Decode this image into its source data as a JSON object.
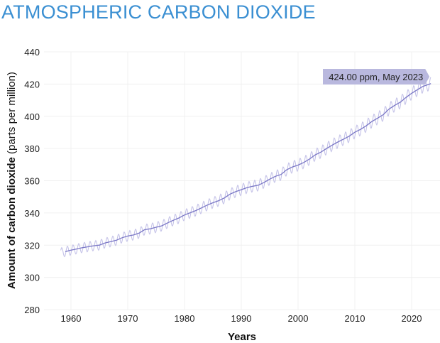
{
  "chart_data": {
    "type": "line",
    "title": "ATMOSPHERIC CARBON DIOXIDE",
    "xlabel": "Years",
    "ylabel_bold": "Amount of carbon dioxide",
    "ylabel_unit": "(parts per million)",
    "xlim": [
      1955,
      2025
    ],
    "ylim": [
      280,
      440
    ],
    "xticks": [
      1960,
      1970,
      1980,
      1990,
      2000,
      2010,
      2020
    ],
    "yticks": [
      280,
      300,
      320,
      340,
      360,
      380,
      400,
      420,
      440
    ],
    "grid": true,
    "annotation": {
      "text": "424.00 ppm, May 2023",
      "x": 2023.4,
      "y": 424.0
    },
    "seasonal_amplitude_ppm": 3.0,
    "series": [
      {
        "kind": "trend",
        "color": "#7a77c6",
        "x": [
          1959,
          1960,
          1961,
          1962,
          1963,
          1964,
          1965,
          1966,
          1967,
          1968,
          1969,
          1970,
          1971,
          1972,
          1973,
          1974,
          1975,
          1976,
          1977,
          1978,
          1979,
          1980,
          1981,
          1982,
          1983,
          1984,
          1985,
          1986,
          1987,
          1988,
          1989,
          1990,
          1991,
          1992,
          1993,
          1994,
          1995,
          1996,
          1997,
          1998,
          1999,
          2000,
          2001,
          2002,
          2003,
          2004,
          2005,
          2006,
          2007,
          2008,
          2009,
          2010,
          2011,
          2012,
          2013,
          2014,
          2015,
          2016,
          2017,
          2018,
          2019,
          2020,
          2021,
          2022,
          2023.4
        ],
        "y": [
          315.98,
          316.91,
          317.64,
          318.45,
          318.99,
          319.62,
          320.04,
          321.37,
          322.18,
          323.05,
          324.62,
          325.68,
          326.32,
          327.46,
          329.68,
          330.19,
          331.13,
          332.03,
          333.84,
          335.41,
          336.84,
          338.76,
          340.12,
          341.48,
          343.15,
          344.87,
          346.35,
          347.61,
          349.31,
          351.69,
          353.2,
          354.45,
          355.7,
          356.54,
          357.21,
          358.96,
          360.97,
          362.74,
          363.88,
          366.84,
          368.54,
          369.71,
          371.32,
          373.45,
          375.98,
          377.7,
          379.98,
          382.09,
          384.02,
          385.83,
          387.64,
          390.1,
          391.85,
          394.06,
          396.74,
          398.81,
          401.01,
          404.41,
          406.76,
          408.72,
          411.66,
          414.24,
          416.45,
          418.56,
          420.3
        ]
      },
      {
        "kind": "monthly",
        "color": "#c5c3e8"
      }
    ]
  }
}
